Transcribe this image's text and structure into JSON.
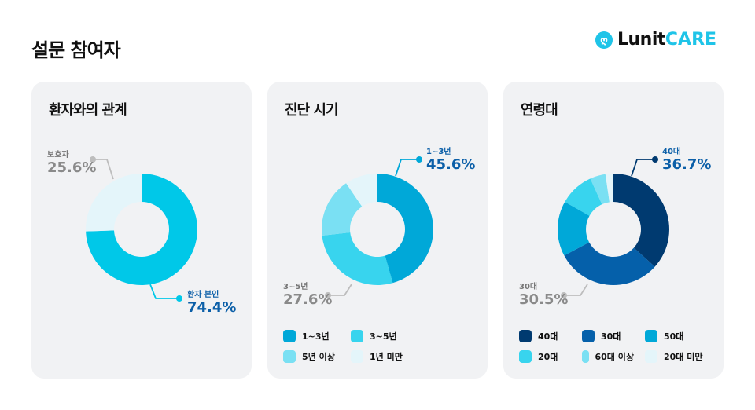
{
  "page_title": "설문 참여자",
  "logo": {
    "text_a": "Lunit",
    "text_b": "CARE",
    "icon": "lunit-logo-icon"
  },
  "chart_data": [
    {
      "type": "pie",
      "title": "환자와의 관계",
      "categories": [
        "환자 본인",
        "보호자"
      ],
      "values": [
        74.4,
        25.6
      ],
      "colors": [
        "#00c8e8",
        "#e4f5fa"
      ],
      "labels": [
        {
          "name": "환자 본인",
          "value": "74.4%",
          "color": "#0b5fa8",
          "line": "#00c8e8"
        },
        {
          "name": "보호자",
          "value": "25.6%",
          "color": "#8a8a8a",
          "line": "#bdbdbd"
        }
      ],
      "legend": false
    },
    {
      "type": "pie",
      "title": "진단 시기",
      "categories": [
        "1~3년",
        "3~5년",
        "5년 이상",
        "1년 미만"
      ],
      "values": [
        45.6,
        27.6,
        17.3,
        9.5
      ],
      "colors": [
        "#00a8d8",
        "#38d4ee",
        "#7ae0f3",
        "#e4f5fa"
      ],
      "labels": [
        {
          "name": "1~3년",
          "value": "45.6%",
          "color": "#0b5fa8",
          "line": "#00a8d8"
        },
        {
          "name": "3~5년",
          "value": "27.6%",
          "color": "#8a8a8a",
          "line": "#bdbdbd"
        }
      ],
      "legend": true,
      "legend_placement": "bottom"
    },
    {
      "type": "pie",
      "title": "연령대",
      "categories": [
        "40대",
        "30대",
        "50대",
        "20대",
        "60대 이상",
        "20대 미만"
      ],
      "values": [
        36.7,
        30.5,
        16.0,
        10.0,
        4.5,
        2.3
      ],
      "colors": [
        "#003a70",
        "#0560aa",
        "#00a8d8",
        "#38d4ee",
        "#7ae0f3",
        "#e4f5fa"
      ],
      "labels": [
        {
          "name": "40대",
          "value": "36.7%",
          "color": "#0b5fa8",
          "line": "#003a70"
        },
        {
          "name": "30대",
          "value": "30.5%",
          "color": "#8a8a8a",
          "line": "#bdbdbd"
        }
      ],
      "legend": true,
      "legend_placement": "bottom"
    }
  ]
}
